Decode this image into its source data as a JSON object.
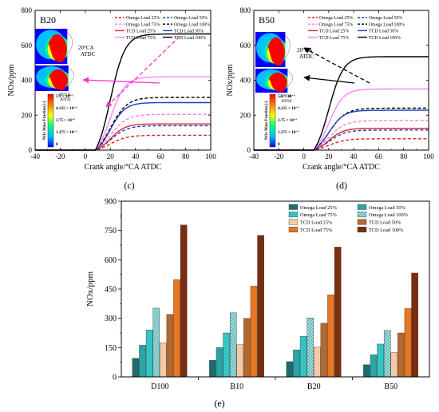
{
  "figure": {
    "panel_c_label": "(c)",
    "panel_d_label": "(d)",
    "panel_e_label": "(e)"
  },
  "colors": {
    "omega25": "#d62728",
    "omega50": "#1f3fbf",
    "omega75": "#ff7fcf",
    "omega100": "#000000",
    "tcd25": "#d62728",
    "tcd50": "#1f3fbf",
    "tcd75": "#ff80ff",
    "tcd100": "#000000",
    "bar_omega25": "#1f6b6b",
    "bar_omega50": "#2aa5a5",
    "bar_omega75": "#35c4c4",
    "bar_omega100": "#a8e0e0",
    "bar_tcd25": "#f6c9a6",
    "bar_tcd50": "#b4682e",
    "bar_tcd75": "#e87722",
    "bar_tcd100": "#7a2e10",
    "arrow_pink": "#ff33cc",
    "contour": [
      "#0000ff",
      "#00c0ff",
      "#00ff80",
      "#ffff00",
      "#ff8000",
      "#ff0000"
    ]
  },
  "insets": {
    "colorbar_title": "NOx Mass Fraction [-]",
    "colorbar_ticks": [
      "5.5 × 10⁻⁵",
      "4.125 × 10⁻⁵",
      "2.75 × 10⁻⁵",
      "1.375 × 10⁻⁵",
      "0"
    ],
    "crank_label_line1": "20°CA",
    "crank_label_line2": "ATDC"
  },
  "chart_data": [
    {
      "type": "line",
      "panel": "c",
      "title": "B20",
      "xlabel": "Crank angle/°CA ATDC",
      "ylabel": "NOx/ppm",
      "xlim": [
        -40,
        100
      ],
      "ylim": [
        0,
        800
      ],
      "xticks": [
        "-40",
        "-20",
        "0",
        "20",
        "40",
        "60",
        "80",
        "100"
      ],
      "yticks": [
        "0",
        "200",
        "400",
        "600",
        "800"
      ],
      "legend": "top-right",
      "series": [
        {
          "name": "Omega Load 25%",
          "style": "dash",
          "color": "#d62728",
          "final": 85
        },
        {
          "name": "Omega Load 50%",
          "style": "dash",
          "color": "#1f3fbf",
          "final": 140
        },
        {
          "name": "Omega Load 75%",
          "style": "dash",
          "color": "#ff7fcf",
          "final": 205
        },
        {
          "name": "Omega Load 100%",
          "style": "dash",
          "color": "#000000",
          "final": 302
        },
        {
          "name": "TCD Load 25%",
          "style": "solid",
          "color": "#d62728",
          "final": 150
        },
        {
          "name": "TCD Load 50%",
          "style": "solid",
          "color": "#1f3fbf",
          "final": 272
        },
        {
          "name": "TCD Load 75%",
          "style": "solid",
          "color": "#ff80ff",
          "final": 420
        },
        {
          "name": "TCD Load 100%",
          "style": "solid",
          "color": "#000000",
          "final": 665
        }
      ]
    },
    {
      "type": "line",
      "panel": "d",
      "title": "B50",
      "xlabel": "Crank angle/°CA ATDC",
      "ylabel": "NOx/ppm",
      "xlim": [
        -40,
        100
      ],
      "ylim": [
        0,
        800
      ],
      "xticks": [
        "-40",
        "-20",
        "0",
        "20",
        "40",
        "60",
        "80",
        "100"
      ],
      "yticks": [
        "0",
        "200",
        "400",
        "600",
        "800"
      ],
      "legend": "top-right",
      "series": [
        {
          "name": "Omega Load 25%",
          "style": "dash",
          "color": "#d62728",
          "final": 65
        },
        {
          "name": "Omega Load 50%",
          "style": "dash",
          "color": "#1f3fbf",
          "final": 115
        },
        {
          "name": "Omega Load 75%",
          "style": "dash",
          "color": "#ff7fcf",
          "final": 170
        },
        {
          "name": "Omega Load 100%",
          "style": "dash",
          "color": "#000000",
          "final": 240
        },
        {
          "name": "TCD Load 25%",
          "style": "solid",
          "color": "#d62728",
          "final": 125
        },
        {
          "name": "TCD Load 50%",
          "style": "solid",
          "color": "#1f3fbf",
          "final": 228
        },
        {
          "name": "TCD Load 75%",
          "style": "solid",
          "color": "#ff80ff",
          "final": 350
        },
        {
          "name": "TCD Load 100%",
          "style": "solid",
          "color": "#000000",
          "final": 535
        }
      ]
    },
    {
      "type": "bar",
      "panel": "e",
      "categories": [
        "D100",
        "B10",
        "B20",
        "B50"
      ],
      "ylabel": "NOx/ppm",
      "ylim": [
        0,
        900
      ],
      "yticks": [
        "0",
        "150",
        "300",
        "450",
        "600",
        "750",
        "900"
      ],
      "legend": "top-right",
      "series": [
        {
          "name": "Omega Load 25%",
          "color": "#1f6b6b",
          "values": [
            95,
            85,
            78,
            62
          ]
        },
        {
          "name": "Omega Load 50%",
          "color": "#2aa5a5",
          "values": [
            162,
            150,
            138,
            113
          ]
        },
        {
          "name": "Omega Load 75%",
          "color": "#35c4c4",
          "values": [
            240,
            225,
            208,
            168
          ]
        },
        {
          "name": "Omega Load 100%",
          "color": "#a8e0e0",
          "values": [
            352,
            328,
            302,
            238
          ]
        },
        {
          "name": "TCD Load 25%",
          "color": "#f6c9a6",
          "values": [
            175,
            165,
            152,
            125
          ]
        },
        {
          "name": "TCD Load 50%",
          "color": "#b4682e",
          "values": [
            320,
            300,
            275,
            225
          ]
        },
        {
          "name": "TCD Load 75%",
          "color": "#e87722",
          "values": [
            498,
            465,
            420,
            350
          ]
        },
        {
          "name": "TCD Load 100%",
          "color": "#7a2e10",
          "values": [
            778,
            725,
            665,
            532
          ]
        }
      ]
    }
  ]
}
